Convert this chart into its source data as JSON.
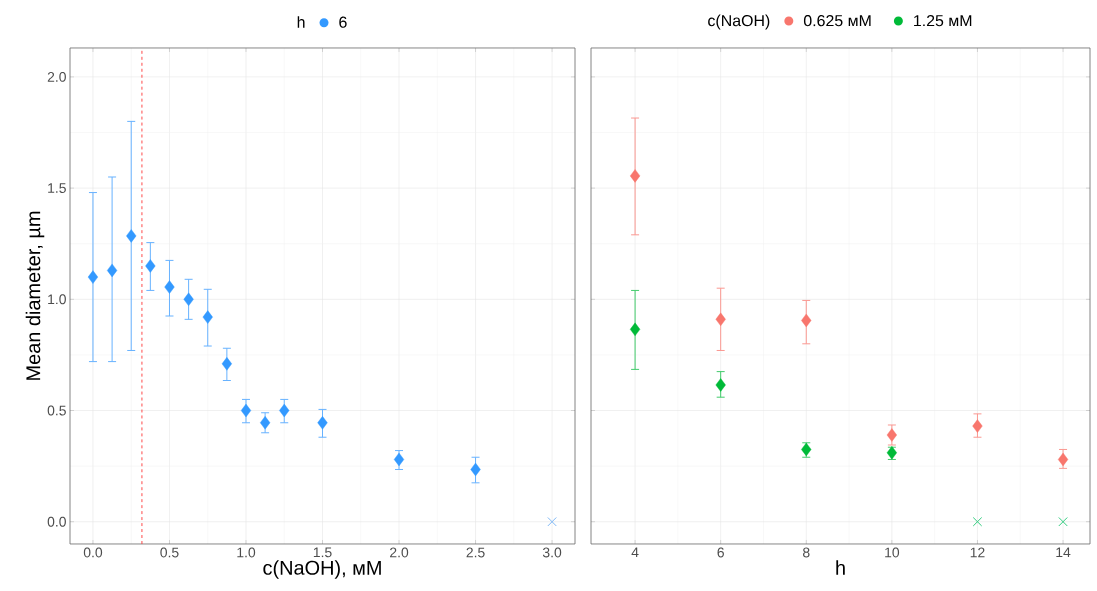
{
  "chart_data": [
    {
      "type": "scatter",
      "xlabel": "c(NaOH), мМ",
      "ylabel": "Mean diameter, µm",
      "legend_title": "h",
      "legend": "top",
      "grid": true,
      "xlim": [
        -0.15,
        3.15
      ],
      "ylim": [
        -0.1,
        2.13
      ],
      "xticks": [
        {
          "value": 0,
          "label": "0.0"
        },
        {
          "value": 0.5,
          "label": "0.5"
        },
        {
          "value": 1,
          "label": "1.0"
        },
        {
          "value": 1.5,
          "label": "1.5"
        },
        {
          "value": 2,
          "label": "2.0"
        },
        {
          "value": 2.5,
          "label": "2.5"
        },
        {
          "value": 3,
          "label": "3.0"
        }
      ],
      "yticks": [
        {
          "value": 0,
          "label": "0.0"
        },
        {
          "value": 0.5,
          "label": "0.5"
        },
        {
          "value": 1,
          "label": "1.0"
        },
        {
          "value": 1.5,
          "label": "1.5"
        },
        {
          "value": 2,
          "label": "2.0"
        }
      ],
      "ref_lines": [
        {
          "axis": "x",
          "value": 0.32,
          "color": "#ff3333",
          "line_style": "dashed"
        }
      ],
      "series": [
        {
          "name": "6",
          "color": "#3399ff",
          "marker": "diamond",
          "x": [
            0,
            0.125,
            0.25,
            0.375,
            0.5,
            0.625,
            0.75,
            0.875,
            1.0,
            1.125,
            1.25,
            1.5,
            2.0,
            2.5
          ],
          "values": [
            1.1,
            1.13,
            1.285,
            1.15,
            1.055,
            1.0,
            0.92,
            0.71,
            0.5,
            0.445,
            0.5,
            0.445,
            0.28,
            0.235
          ],
          "errors": [
            [
              0.72,
              1.48
            ],
            [
              0.72,
              1.55
            ],
            [
              0.77,
              1.8
            ],
            [
              1.04,
              1.255
            ],
            [
              0.925,
              1.175
            ],
            [
              0.91,
              1.09
            ],
            [
              0.79,
              1.045
            ],
            [
              0.635,
              0.78
            ],
            [
              0.445,
              0.55
            ],
            [
              0.4,
              0.49
            ],
            [
              0.445,
              0.55
            ],
            [
              0.38,
              0.505
            ],
            [
              0.235,
              0.32
            ],
            [
              0.175,
              0.29
            ]
          ]
        },
        {
          "color": "#7fb8f5",
          "marker": "cross",
          "x": [
            3.0
          ],
          "values": [
            0
          ]
        }
      ]
    },
    {
      "type": "scatter",
      "xlabel": "h",
      "legend_title": "c(NaOH)",
      "legend": "top",
      "grid": true,
      "tick_labels": "x",
      "xlim": [
        2.97,
        14.63
      ],
      "ylim": [
        -0.1,
        2.13
      ],
      "xticks": [
        4,
        6,
        8,
        10,
        12,
        14
      ],
      "yticks": [
        {
          "value": 0,
          "label": null
        },
        {
          "value": 0.5,
          "label": null
        },
        {
          "value": 1,
          "label": null
        },
        {
          "value": 1.5,
          "label": null
        },
        {
          "value": 2,
          "label": null
        }
      ],
      "series": [
        {
          "name": "0.625 мМ",
          "color": "#f8766d",
          "marker": "diamond",
          "x": [
            4,
            6,
            8,
            10,
            12,
            14
          ],
          "values": [
            1.555,
            0.91,
            0.905,
            0.39,
            0.43,
            0.28
          ],
          "errors": [
            [
              1.29,
              1.815
            ],
            [
              0.77,
              1.05
            ],
            [
              0.8,
              0.995
            ],
            [
              0.345,
              0.435
            ],
            [
              0.38,
              0.485
            ],
            [
              0.24,
              0.325
            ]
          ]
        },
        {
          "name": "1.25 мМ",
          "color": "#00ba38",
          "marker": "diamond",
          "x": [
            4,
            6,
            8,
            10
          ],
          "values": [
            0.865,
            0.615,
            0.325,
            0.31
          ],
          "errors": [
            [
              0.685,
              1.04
            ],
            [
              0.56,
              0.675
            ],
            [
              0.29,
              0.355
            ],
            [
              0.28,
              0.335
            ]
          ]
        },
        {
          "color": "#33cc80",
          "marker": "cross",
          "x": [
            12,
            14
          ],
          "values": [
            0,
            0
          ]
        }
      ]
    }
  ]
}
